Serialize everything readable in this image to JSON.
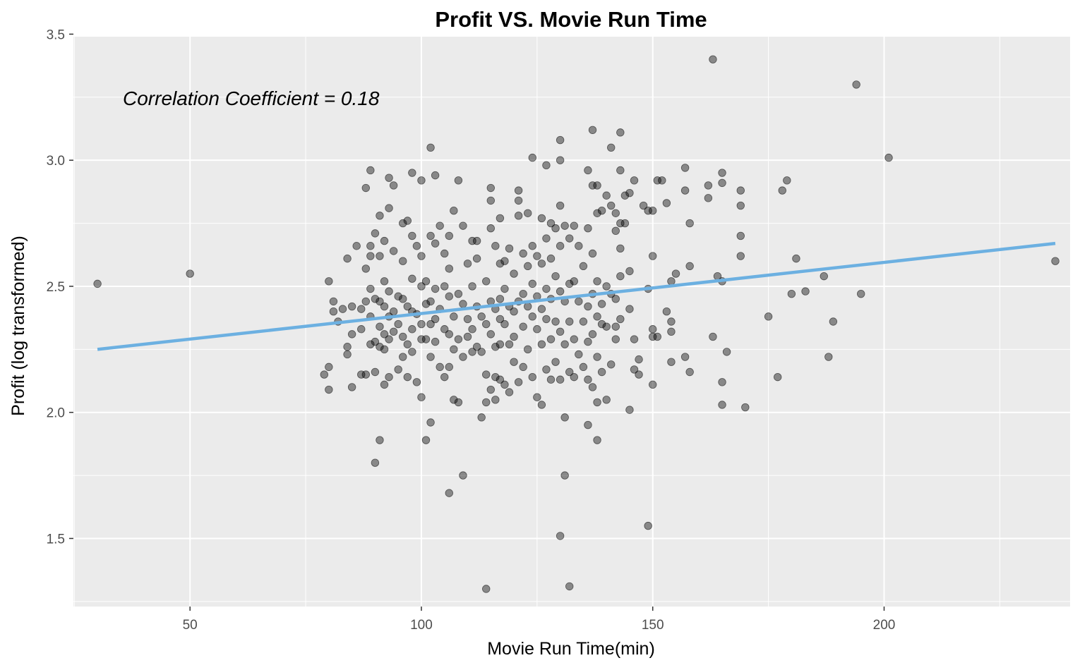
{
  "chart_data": {
    "type": "scatter",
    "title": "Profit VS. Movie Run Time",
    "xlabel": "Movie Run Time(min)",
    "ylabel": "Profit (log transformed)",
    "xlim": [
      24.8,
      240.2
    ],
    "ylim": [
      1.23,
      3.49
    ],
    "xticks": [
      50,
      100,
      150,
      200
    ],
    "yticks": [
      1.5,
      2.0,
      2.5,
      3.0,
      3.5
    ],
    "xtick_labels": [
      "50",
      "100",
      "150",
      "200"
    ],
    "ytick_labels": [
      "1.5",
      "2.0",
      "2.5",
      "3.0",
      "3.5"
    ],
    "grid": true,
    "annotation": "Correlation Coefficient = 0.18",
    "point_color": "#000000",
    "point_opacity": 0.42,
    "trend_color": "#6cb0e1",
    "background_color": "#ebebeb",
    "grid_color": "#ffffff",
    "trend_line": {
      "x": [
        30,
        237
      ],
      "y": [
        2.25,
        2.67
      ]
    },
    "points": [
      [
        30,
        2.51
      ],
      [
        50,
        2.55
      ],
      [
        80,
        2.09
      ],
      [
        80,
        2.18
      ],
      [
        79,
        2.15
      ],
      [
        80,
        2.52
      ],
      [
        81,
        2.44
      ],
      [
        81,
        2.4
      ],
      [
        82,
        2.36
      ],
      [
        83,
        2.41
      ],
      [
        84,
        2.23
      ],
      [
        84,
        2.26
      ],
      [
        84,
        2.61
      ],
      [
        85,
        2.42
      ],
      [
        85,
        2.31
      ],
      [
        85,
        2.1
      ],
      [
        86,
        2.66
      ],
      [
        87,
        2.15
      ],
      [
        87,
        2.41
      ],
      [
        87,
        2.33
      ],
      [
        88,
        2.57
      ],
      [
        88,
        2.89
      ],
      [
        88,
        2.44
      ],
      [
        88,
        2.15
      ],
      [
        89,
        2.66
      ],
      [
        89,
        2.96
      ],
      [
        89,
        2.49
      ],
      [
        89,
        2.38
      ],
      [
        89,
        2.27
      ],
      [
        89,
        2.62
      ],
      [
        90,
        2.71
      ],
      [
        90,
        2.45
      ],
      [
        90,
        2.28
      ],
      [
        90,
        1.8
      ],
      [
        90,
        2.16
      ],
      [
        91,
        2.78
      ],
      [
        91,
        2.62
      ],
      [
        91,
        2.44
      ],
      [
        91,
        2.34
      ],
      [
        91,
        2.26
      ],
      [
        91,
        1.89
      ],
      [
        92,
        2.68
      ],
      [
        92,
        2.52
      ],
      [
        92,
        2.42
      ],
      [
        92,
        2.31
      ],
      [
        92,
        2.25
      ],
      [
        92,
        2.11
      ],
      [
        93,
        2.93
      ],
      [
        93,
        2.81
      ],
      [
        93,
        2.48
      ],
      [
        93,
        2.38
      ],
      [
        93,
        2.29
      ],
      [
        93,
        2.14
      ],
      [
        94,
        2.9
      ],
      [
        94,
        2.64
      ],
      [
        94,
        2.4
      ],
      [
        94,
        2.32
      ],
      [
        95,
        2.35
      ],
      [
        95,
        2.46
      ],
      [
        95,
        2.17
      ],
      [
        96,
        2.75
      ],
      [
        96,
        2.6
      ],
      [
        96,
        2.45
      ],
      [
        96,
        2.3
      ],
      [
        96,
        2.22
      ],
      [
        97,
        2.76
      ],
      [
        97,
        2.42
      ],
      [
        97,
        2.27
      ],
      [
        97,
        2.14
      ],
      [
        98,
        2.95
      ],
      [
        98,
        2.7
      ],
      [
        98,
        2.53
      ],
      [
        98,
        2.4
      ],
      [
        98,
        2.33
      ],
      [
        98,
        2.24
      ],
      [
        99,
        2.66
      ],
      [
        99,
        2.39
      ],
      [
        99,
        2.12
      ],
      [
        100,
        2.92
      ],
      [
        100,
        2.62
      ],
      [
        100,
        2.5
      ],
      [
        100,
        2.35
      ],
      [
        100,
        2.29
      ],
      [
        100,
        2.06
      ],
      [
        101,
        2.52
      ],
      [
        101,
        2.43
      ],
      [
        101,
        2.29
      ],
      [
        101,
        1.89
      ],
      [
        102,
        3.05
      ],
      [
        102,
        2.7
      ],
      [
        102,
        2.44
      ],
      [
        102,
        2.35
      ],
      [
        102,
        2.22
      ],
      [
        102,
        1.96
      ],
      [
        103,
        2.94
      ],
      [
        103,
        2.67
      ],
      [
        103,
        2.49
      ],
      [
        103,
        2.37
      ],
      [
        103,
        2.28
      ],
      [
        104,
        2.74
      ],
      [
        104,
        2.41
      ],
      [
        104,
        2.18
      ],
      [
        105,
        2.63
      ],
      [
        105,
        2.5
      ],
      [
        105,
        2.33
      ],
      [
        105,
        2.14
      ],
      [
        106,
        2.7
      ],
      [
        106,
        2.57
      ],
      [
        106,
        2.46
      ],
      [
        106,
        2.31
      ],
      [
        106,
        2.18
      ],
      [
        106,
        1.68
      ],
      [
        107,
        2.8
      ],
      [
        107,
        2.38
      ],
      [
        107,
        2.25
      ],
      [
        107,
        2.05
      ],
      [
        108,
        2.92
      ],
      [
        108,
        2.47
      ],
      [
        108,
        2.29
      ],
      [
        108,
        2.04
      ],
      [
        109,
        2.74
      ],
      [
        109,
        2.43
      ],
      [
        109,
        2.22
      ],
      [
        109,
        1.75
      ],
      [
        110,
        2.59
      ],
      [
        110,
        2.37
      ],
      [
        110,
        2.3
      ],
      [
        111,
        2.68
      ],
      [
        111,
        2.5
      ],
      [
        111,
        2.33
      ],
      [
        111,
        2.24
      ],
      [
        112,
        2.68
      ],
      [
        112,
        2.61
      ],
      [
        112,
        2.42
      ],
      [
        112,
        2.26
      ],
      [
        113,
        2.38
      ],
      [
        113,
        2.24
      ],
      [
        113,
        1.98
      ],
      [
        114,
        2.52
      ],
      [
        114,
        2.35
      ],
      [
        114,
        2.15
      ],
      [
        114,
        2.04
      ],
      [
        114,
        1.3
      ],
      [
        115,
        2.89
      ],
      [
        115,
        2.84
      ],
      [
        115,
        2.73
      ],
      [
        115,
        2.44
      ],
      [
        115,
        2.31
      ],
      [
        115,
        2.09
      ],
      [
        116,
        2.66
      ],
      [
        116,
        2.41
      ],
      [
        116,
        2.26
      ],
      [
        116,
        2.14
      ],
      [
        116,
        2.05
      ],
      [
        117,
        2.77
      ],
      [
        117,
        2.59
      ],
      [
        117,
        2.45
      ],
      [
        117,
        2.37
      ],
      [
        117,
        2.27
      ],
      [
        117,
        2.13
      ],
      [
        118,
        2.6
      ],
      [
        118,
        2.49
      ],
      [
        118,
        2.35
      ],
      [
        118,
        2.11
      ],
      [
        119,
        2.65
      ],
      [
        119,
        2.42
      ],
      [
        119,
        2.27
      ],
      [
        119,
        2.08
      ],
      [
        120,
        2.55
      ],
      [
        120,
        2.4
      ],
      [
        120,
        2.3
      ],
      [
        120,
        2.2
      ],
      [
        121,
        2.88
      ],
      [
        121,
        2.84
      ],
      [
        121,
        2.78
      ],
      [
        121,
        2.44
      ],
      [
        121,
        2.12
      ],
      [
        122,
        2.63
      ],
      [
        122,
        2.47
      ],
      [
        122,
        2.34
      ],
      [
        122,
        2.18
      ],
      [
        123,
        2.79
      ],
      [
        123,
        2.58
      ],
      [
        123,
        2.42
      ],
      [
        123,
        2.25
      ],
      [
        124,
        3.01
      ],
      [
        124,
        2.66
      ],
      [
        124,
        2.51
      ],
      [
        124,
        2.38
      ],
      [
        124,
        2.14
      ],
      [
        125,
        2.62
      ],
      [
        125,
        2.46
      ],
      [
        125,
        2.33
      ],
      [
        125,
        2.06
      ],
      [
        126,
        2.77
      ],
      [
        126,
        2.59
      ],
      [
        126,
        2.41
      ],
      [
        126,
        2.27
      ],
      [
        126,
        2.03
      ],
      [
        127,
        2.98
      ],
      [
        127,
        2.69
      ],
      [
        127,
        2.49
      ],
      [
        127,
        2.37
      ],
      [
        127,
        2.17
      ],
      [
        128,
        2.75
      ],
      [
        128,
        2.61
      ],
      [
        128,
        2.45
      ],
      [
        128,
        2.29
      ],
      [
        128,
        2.13
      ],
      [
        129,
        2.73
      ],
      [
        129,
        2.54
      ],
      [
        129,
        2.36
      ],
      [
        129,
        2.2
      ],
      [
        130,
        3.08
      ],
      [
        130,
        3.0
      ],
      [
        130,
        2.82
      ],
      [
        130,
        2.66
      ],
      [
        130,
        2.48
      ],
      [
        130,
        2.32
      ],
      [
        130,
        2.13
      ],
      [
        130,
        1.51
      ],
      [
        131,
        2.74
      ],
      [
        131,
        2.44
      ],
      [
        131,
        2.27
      ],
      [
        131,
        1.98
      ],
      [
        131,
        1.75
      ],
      [
        132,
        2.69
      ],
      [
        132,
        2.51
      ],
      [
        132,
        2.36
      ],
      [
        132,
        2.16
      ],
      [
        132,
        1.31
      ],
      [
        133,
        2.74
      ],
      [
        133,
        2.52
      ],
      [
        133,
        2.29
      ],
      [
        133,
        2.14
      ],
      [
        134,
        2.66
      ],
      [
        134,
        2.44
      ],
      [
        134,
        2.23
      ],
      [
        135,
        2.58
      ],
      [
        135,
        2.36
      ],
      [
        135,
        2.18
      ],
      [
        136,
        2.96
      ],
      [
        136,
        2.73
      ],
      [
        136,
        2.42
      ],
      [
        136,
        2.28
      ],
      [
        136,
        2.13
      ],
      [
        136,
        1.95
      ],
      [
        137,
        3.12
      ],
      [
        137,
        2.9
      ],
      [
        137,
        2.63
      ],
      [
        137,
        2.47
      ],
      [
        137,
        2.31
      ],
      [
        137,
        2.1
      ],
      [
        138,
        2.9
      ],
      [
        138,
        2.79
      ],
      [
        138,
        2.52
      ],
      [
        138,
        2.38
      ],
      [
        138,
        2.22
      ],
      [
        138,
        2.04
      ],
      [
        138,
        1.89
      ],
      [
        139,
        2.8
      ],
      [
        139,
        2.43
      ],
      [
        139,
        2.35
      ],
      [
        139,
        2.16
      ],
      [
        140,
        2.86
      ],
      [
        140,
        2.5
      ],
      [
        140,
        2.34
      ],
      [
        140,
        2.05
      ],
      [
        141,
        3.05
      ],
      [
        141,
        2.82
      ],
      [
        141,
        2.47
      ],
      [
        141,
        2.19
      ],
      [
        142,
        2.79
      ],
      [
        142,
        2.72
      ],
      [
        142,
        2.45
      ],
      [
        142,
        2.29
      ],
      [
        142,
        2.34
      ],
      [
        143,
        3.11
      ],
      [
        143,
        2.96
      ],
      [
        143,
        2.75
      ],
      [
        143,
        2.65
      ],
      [
        143,
        2.54
      ],
      [
        143,
        2.37
      ],
      [
        144,
        2.75
      ],
      [
        144,
        2.86
      ],
      [
        145,
        2.87
      ],
      [
        145,
        2.56
      ],
      [
        145,
        2.41
      ],
      [
        145,
        2.01
      ],
      [
        146,
        2.92
      ],
      [
        146,
        2.29
      ],
      [
        146,
        2.17
      ],
      [
        147,
        2.21
      ],
      [
        147,
        2.15
      ],
      [
        148,
        2.82
      ],
      [
        149,
        2.8
      ],
      [
        149,
        2.49
      ],
      [
        149,
        1.55
      ],
      [
        150,
        2.8
      ],
      [
        150,
        2.62
      ],
      [
        150,
        2.33
      ],
      [
        150,
        2.3
      ],
      [
        150,
        2.11
      ],
      [
        151,
        2.92
      ],
      [
        151,
        2.3
      ],
      [
        152,
        2.92
      ],
      [
        153,
        2.83
      ],
      [
        153,
        2.4
      ],
      [
        154,
        2.52
      ],
      [
        154,
        2.36
      ],
      [
        154,
        2.32
      ],
      [
        154,
        2.2
      ],
      [
        155,
        2.55
      ],
      [
        157,
        2.97
      ],
      [
        157,
        2.88
      ],
      [
        157,
        2.22
      ],
      [
        158,
        2.75
      ],
      [
        158,
        2.58
      ],
      [
        158,
        2.16
      ],
      [
        162,
        2.9
      ],
      [
        162,
        2.85
      ],
      [
        163,
        3.4
      ],
      [
        163,
        2.3
      ],
      [
        164,
        2.54
      ],
      [
        165,
        2.95
      ],
      [
        165,
        2.91
      ],
      [
        165,
        2.52
      ],
      [
        165,
        2.12
      ],
      [
        165,
        2.03
      ],
      [
        166,
        2.24
      ],
      [
        169,
        2.88
      ],
      [
        169,
        2.82
      ],
      [
        169,
        2.7
      ],
      [
        169,
        2.62
      ],
      [
        170,
        2.02
      ],
      [
        175,
        2.38
      ],
      [
        177,
        2.14
      ],
      [
        178,
        2.88
      ],
      [
        179,
        2.92
      ],
      [
        180,
        2.47
      ],
      [
        181,
        2.61
      ],
      [
        183,
        2.48
      ],
      [
        187,
        2.54
      ],
      [
        188,
        2.22
      ],
      [
        189,
        2.36
      ],
      [
        194,
        3.3
      ],
      [
        195,
        2.47
      ],
      [
        201,
        3.01
      ],
      [
        237,
        2.6
      ]
    ]
  }
}
